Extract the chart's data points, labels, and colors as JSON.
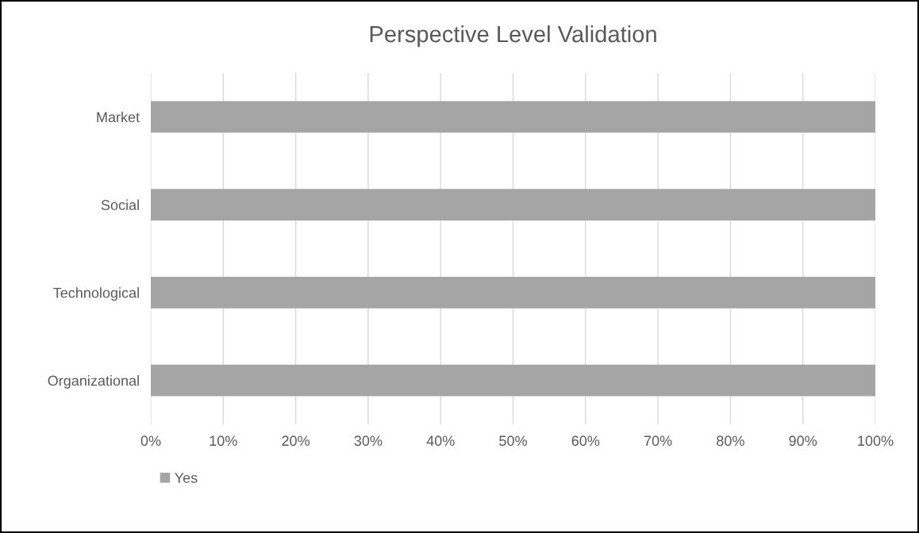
{
  "chart_data": {
    "type": "bar",
    "orientation": "horizontal",
    "title": "Perspective Level Validation",
    "categories": [
      "Market",
      "Social",
      "Technological",
      "Organizational"
    ],
    "series": [
      {
        "name": "Yes",
        "color": "#a5a5a5",
        "values": [
          100,
          100,
          100,
          100
        ]
      }
    ],
    "xlim": [
      0,
      100
    ],
    "xticks": [
      {
        "value": 0,
        "label": "0%"
      },
      {
        "value": 10,
        "label": "10%"
      },
      {
        "value": 20,
        "label": "20%"
      },
      {
        "value": 30,
        "label": "30%"
      },
      {
        "value": 40,
        "label": "40%"
      },
      {
        "value": 50,
        "label": "50%"
      },
      {
        "value": 60,
        "label": "60%"
      },
      {
        "value": 70,
        "label": "70%"
      },
      {
        "value": 80,
        "label": "80%"
      },
      {
        "value": 90,
        "label": "90%"
      },
      {
        "value": 100,
        "label": "100%"
      }
    ],
    "grid": "x",
    "legend": "bottom left"
  }
}
